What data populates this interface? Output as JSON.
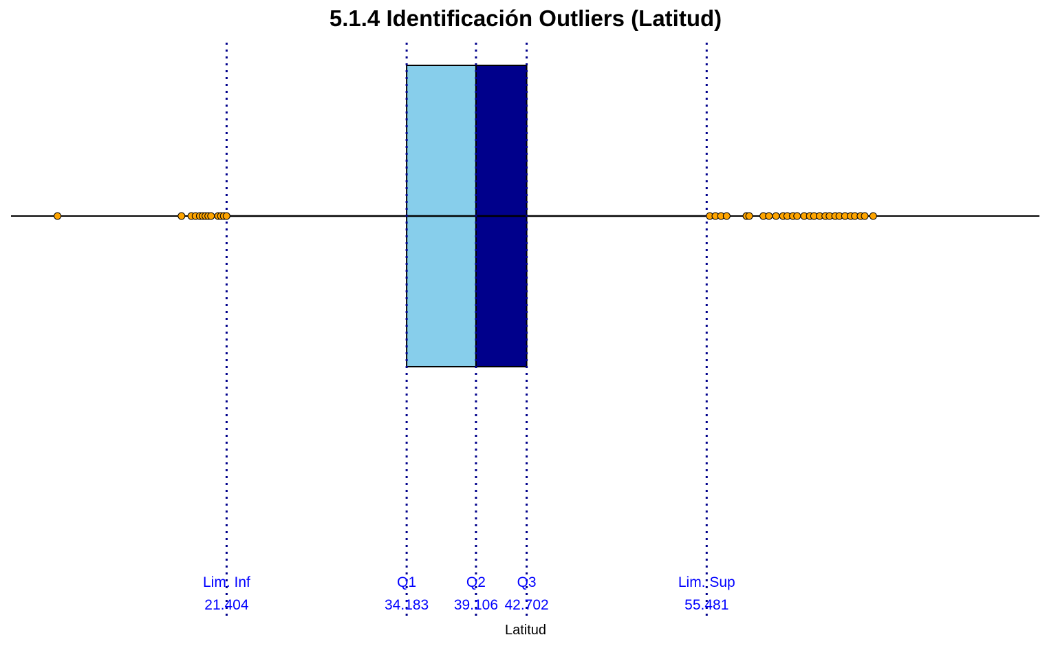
{
  "chart_data": {
    "type": "boxplot",
    "title": "5.1.4 Identificación Outliers (Latitud)",
    "xlabel": "Latitud",
    "xlim": [
      6.1,
      79.1
    ],
    "grid": false,
    "legend": "none",
    "quartiles": {
      "q1": 34.183,
      "q2": 39.106,
      "q3": 42.702
    },
    "whiskers": {
      "lower": 21.404,
      "upper": 55.481
    },
    "reference_lines": [
      {
        "label": "Lim. Inf",
        "value_label": "21.404",
        "value": 21.404
      },
      {
        "label": "Q1",
        "value_label": "34.183",
        "value": 34.183
      },
      {
        "label": "Q2",
        "value_label": "39.106",
        "value": 39.106
      },
      {
        "label": "Q3",
        "value_label": "42.702",
        "value": 42.702
      },
      {
        "label": "Lim. Sup",
        "value_label": "55.481",
        "value": 55.481
      }
    ],
    "outliers": [
      9.4,
      18.2,
      18.9,
      19.2,
      19.5,
      19.7,
      19.9,
      20.1,
      20.3,
      20.8,
      21.0,
      21.2,
      21.4,
      55.7,
      56.1,
      56.5,
      56.9,
      58.3,
      58.5,
      59.5,
      59.9,
      60.4,
      60.9,
      61.2,
      61.6,
      61.9,
      62.4,
      62.8,
      63.1,
      63.5,
      63.9,
      64.2,
      64.6,
      64.9,
      65.3,
      65.7,
      66.0,
      66.4,
      66.7,
      67.3
    ],
    "colors": {
      "box_lower": "#87ceeb",
      "box_upper": "#00008b",
      "reference_line": "#00008b",
      "reference_text": "#0000ff",
      "outlier_fill": "#ffa500",
      "outlier_stroke": "#000000",
      "axis_line": "#000000"
    }
  }
}
